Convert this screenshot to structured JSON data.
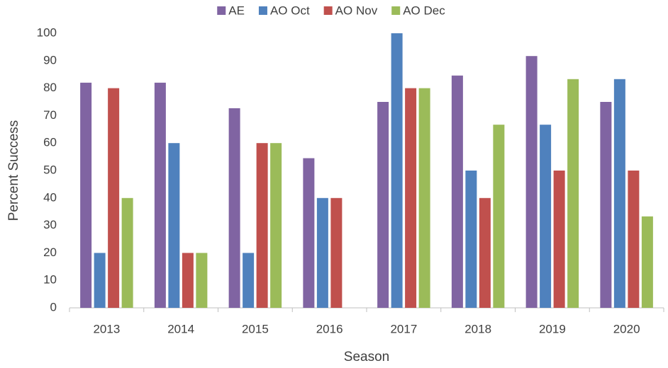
{
  "chart_data": {
    "type": "bar",
    "x_label": "Season",
    "y_label": "Percent Success",
    "categories": [
      "2013",
      "2014",
      "2015",
      "2016",
      "2017",
      "2018",
      "2019",
      "2020"
    ],
    "series": [
      {
        "name": "AE",
        "color": "#8064a2",
        "values": [
          82,
          82,
          72.7,
          54.5,
          75,
          84.6,
          91.7,
          75
        ]
      },
      {
        "name": "AO Oct",
        "color": "#4f81bd",
        "values": [
          20,
          60,
          20,
          40,
          100,
          50,
          66.7,
          83.3
        ]
      },
      {
        "name": "AO Nov",
        "color": "#c0504d",
        "values": [
          80,
          20,
          60,
          40,
          80,
          40,
          50,
          50
        ]
      },
      {
        "name": "AO Dec",
        "color": "#9bbb59",
        "values": [
          40,
          20,
          60,
          0,
          80,
          66.7,
          83.3,
          33.3
        ]
      }
    ],
    "ylim": [
      0,
      100
    ],
    "yticks": [
      0,
      10,
      20,
      30,
      40,
      50,
      60,
      70,
      80,
      90,
      100
    ],
    "grid": false,
    "legend": "top"
  }
}
